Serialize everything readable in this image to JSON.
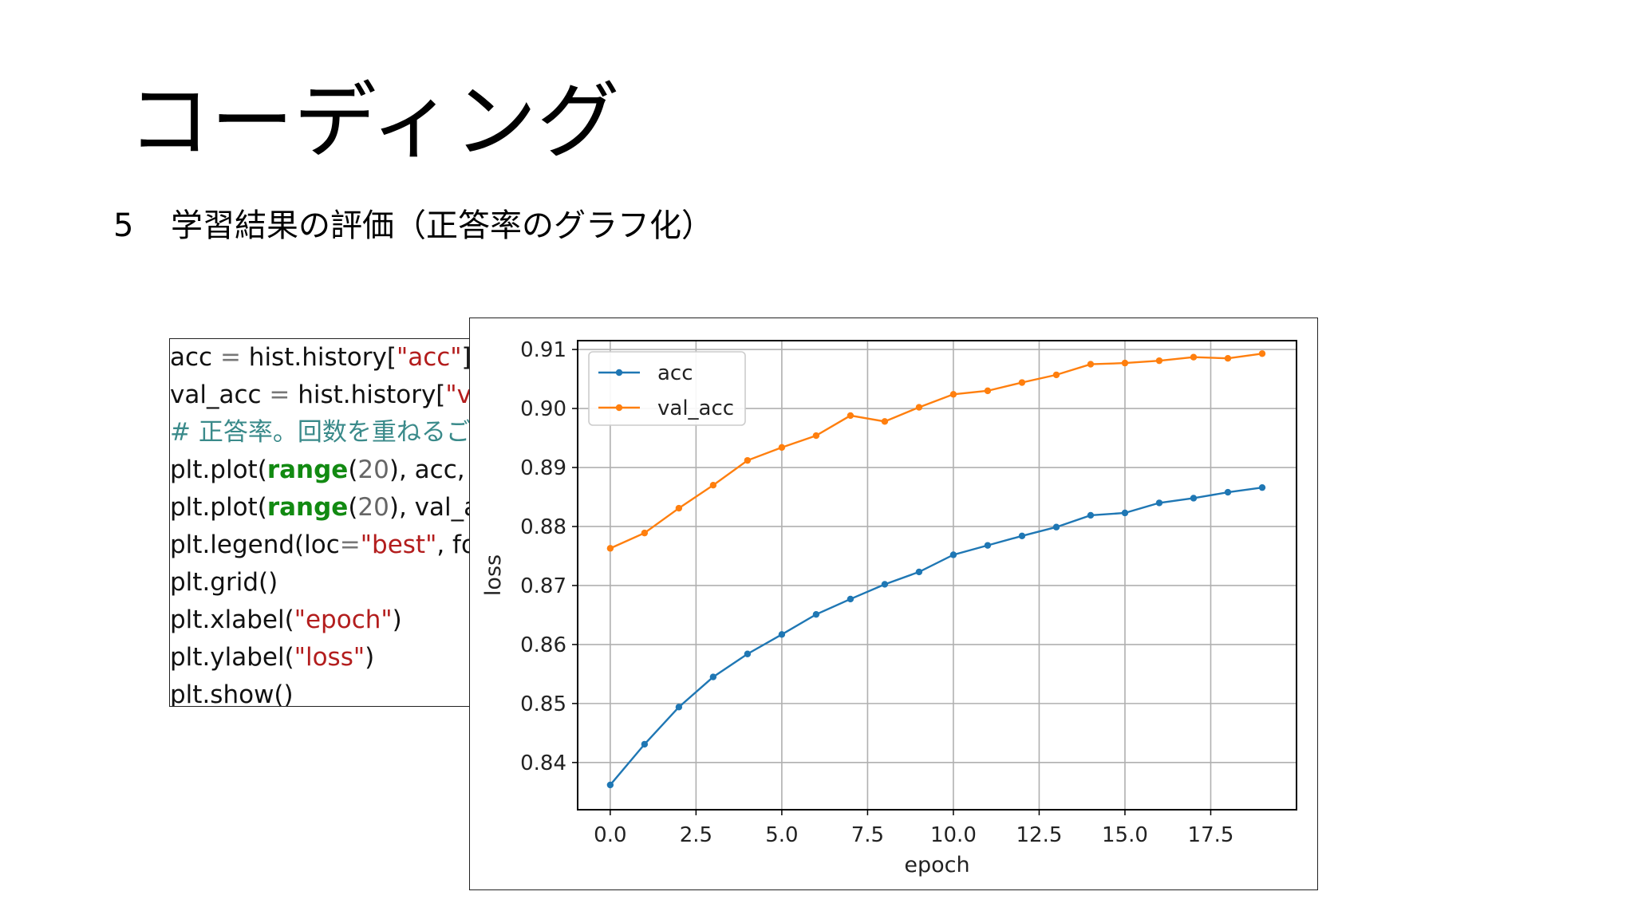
{
  "slide": {
    "title": "コーディング",
    "section_number": "5",
    "section_text": "学習結果の評価（正答率のグラフ化）"
  },
  "code": {
    "lines": [
      [
        {
          "t": "acc ",
          "c": ""
        },
        {
          "t": "=",
          "c": "op"
        },
        {
          "t": " hist.history[",
          "c": ""
        },
        {
          "t": "\"acc\"",
          "c": "str"
        },
        {
          "t": "]",
          "c": ""
        }
      ],
      [
        {
          "t": "val_acc ",
          "c": ""
        },
        {
          "t": "=",
          "c": "op"
        },
        {
          "t": " hist.history[",
          "c": ""
        },
        {
          "t": "\"va",
          "c": "str"
        }
      ],
      [
        {
          "t": "# 正答率。回数を重ねるごと",
          "c": "com"
        }
      ],
      [
        {
          "t": "plt.plot(",
          "c": ""
        },
        {
          "t": "range",
          "c": "fn"
        },
        {
          "t": "(",
          "c": ""
        },
        {
          "t": "20",
          "c": "num"
        },
        {
          "t": "), acc, m",
          "c": ""
        }
      ],
      [
        {
          "t": "plt.plot(",
          "c": ""
        },
        {
          "t": "range",
          "c": "fn"
        },
        {
          "t": "(",
          "c": ""
        },
        {
          "t": "20",
          "c": "num"
        },
        {
          "t": "), val_ac",
          "c": ""
        }
      ],
      [
        {
          "t": "plt.legend(loc",
          "c": ""
        },
        {
          "t": "=",
          "c": "op"
        },
        {
          "t": "\"best\"",
          "c": "str"
        },
        {
          "t": ", font",
          "c": ""
        }
      ],
      [
        {
          "t": "plt.grid()",
          "c": ""
        }
      ],
      [
        {
          "t": "plt.xlabel(",
          "c": ""
        },
        {
          "t": "\"epoch\"",
          "c": "str"
        },
        {
          "t": ")",
          "c": ""
        }
      ],
      [
        {
          "t": "plt.ylabel(",
          "c": ""
        },
        {
          "t": "\"loss\"",
          "c": "str"
        },
        {
          "t": ")",
          "c": ""
        }
      ],
      [
        {
          "t": "plt.show()",
          "c": ""
        }
      ]
    ]
  },
  "colors": {
    "acc": "#1f77b4",
    "val_acc": "#ff7f0e",
    "grid": "#b0b0b0",
    "string": "#b31d1d",
    "function": "#128a12",
    "comment": "#3a8a8a"
  },
  "chart_data": {
    "type": "line",
    "xlabel": "epoch",
    "ylabel": "loss",
    "xlim": [
      -0.95,
      20.0
    ],
    "ylim": [
      0.832,
      0.9115
    ],
    "x_ticks": [
      0.0,
      2.5,
      5.0,
      7.5,
      10.0,
      12.5,
      15.0,
      17.5
    ],
    "x_tick_labels": [
      "0.0",
      "2.5",
      "5.0",
      "7.5",
      "10.0",
      "12.5",
      "15.0",
      "17.5"
    ],
    "y_ticks": [
      0.84,
      0.85,
      0.86,
      0.87,
      0.88,
      0.89,
      0.9,
      0.91
    ],
    "y_tick_labels": [
      "0.84",
      "0.85",
      "0.86",
      "0.87",
      "0.88",
      "0.89",
      "0.90",
      "0.91"
    ],
    "grid": true,
    "legend_position": "top-left",
    "x": [
      0,
      1,
      2,
      3,
      4,
      5,
      6,
      7,
      8,
      9,
      10,
      11,
      12,
      13,
      14,
      15,
      16,
      17,
      18,
      19
    ],
    "series": [
      {
        "name": "acc",
        "values": [
          0.8362,
          0.8431,
          0.8494,
          0.8545,
          0.8584,
          0.8617,
          0.8651,
          0.8677,
          0.8702,
          0.8723,
          0.8752,
          0.8768,
          0.8784,
          0.8799,
          0.8819,
          0.8823,
          0.884,
          0.8848,
          0.8858,
          0.8866
        ]
      },
      {
        "name": "val_acc",
        "values": [
          0.8763,
          0.8789,
          0.8831,
          0.887,
          0.8912,
          0.8934,
          0.8954,
          0.8988,
          0.8978,
          0.9002,
          0.9024,
          0.903,
          0.9044,
          0.9057,
          0.9075,
          0.9077,
          0.9081,
          0.9087,
          0.9085,
          0.9093
        ]
      }
    ]
  }
}
